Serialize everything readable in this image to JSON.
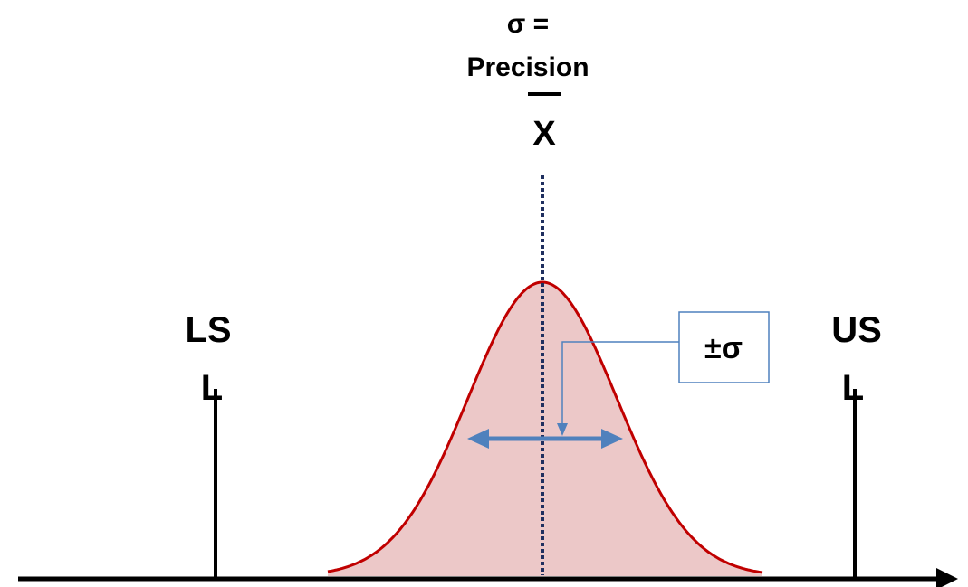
{
  "title": {
    "line1": "σ =",
    "line2": "Precision"
  },
  "mean_label": "X",
  "lower_limit": {
    "line1": "LS",
    "line2": "L"
  },
  "upper_limit": {
    "line1": "US",
    "line2": "L"
  },
  "sigma_callout": "±σ",
  "colors": {
    "curve_stroke": "#c00000",
    "curve_fill": "#ecc8c8",
    "mean_line": "#1f2f5f",
    "arrow": "#4f81bd",
    "callout_border": "#4f81bd",
    "axis": "#000000"
  }
}
